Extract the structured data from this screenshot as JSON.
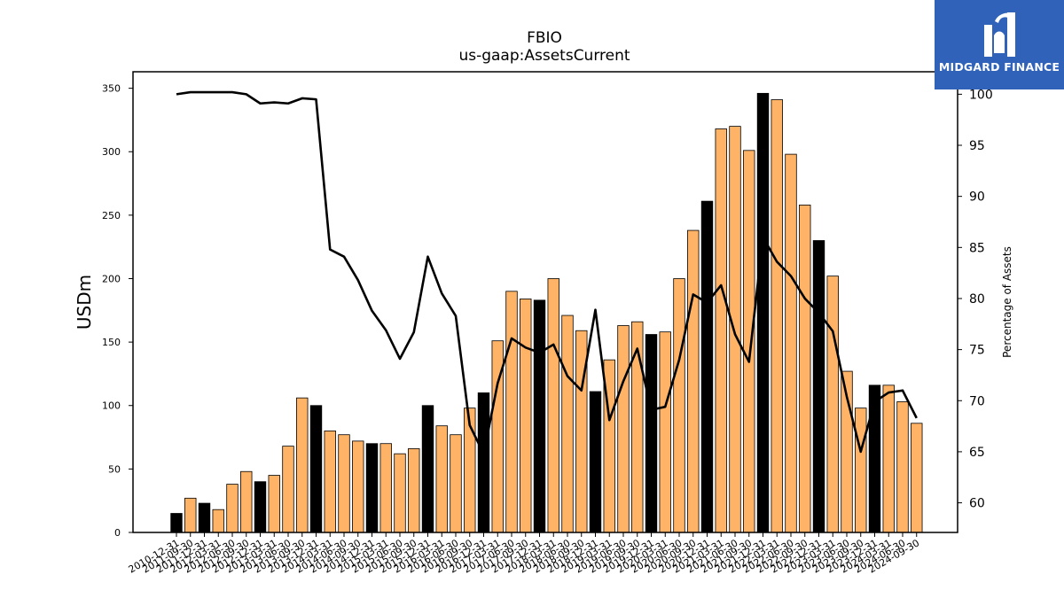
{
  "logo": {
    "text": "MIDGARD FINANCE",
    "background": "#2f62b8"
  },
  "chart_data": {
    "type": "bar",
    "title": "FBIO",
    "subtitle": "us-gaap:AssetsCurrent",
    "ylabel": "USDm",
    "y2label": "Percentage of Assets",
    "ylim": [
      0,
      363
    ],
    "y2lim": [
      57.1,
      102.2
    ],
    "yticks": [
      0,
      50,
      100,
      150,
      200,
      250,
      300,
      350
    ],
    "y2ticks": [
      60,
      65,
      70,
      75,
      80,
      85,
      90,
      95,
      100
    ],
    "grid": false,
    "colors": {
      "annual_bar": "#000000",
      "quarter_bar": "#ffb366",
      "line": "#000000"
    },
    "categories": [
      "2010-12-31",
      "2011-09-30",
      "2011-12-31",
      "2012-03-31",
      "2012-06-30",
      "2012-09-30",
      "2012-12-31",
      "2013-03-31",
      "2013-06-30",
      "2013-09-30",
      "2013-12-31",
      "2014-03-31",
      "2014-06-30",
      "2014-09-30",
      "2014-12-31",
      "2015-03-31",
      "2015-06-30",
      "2015-09-30",
      "2015-12-31",
      "2016-03-31",
      "2016-06-30",
      "2016-09-30",
      "2016-12-31",
      "2017-03-31",
      "2017-06-30",
      "2017-09-30",
      "2017-12-31",
      "2018-03-31",
      "2018-06-30",
      "2018-09-30",
      "2018-12-31",
      "2019-03-31",
      "2019-06-30",
      "2019-09-30",
      "2019-12-31",
      "2020-03-31",
      "2020-06-30",
      "2020-09-30",
      "2020-12-31",
      "2021-03-31",
      "2021-06-30",
      "2021-09-30",
      "2021-12-31",
      "2022-03-31",
      "2022-06-30",
      "2022-09-30",
      "2022-12-31",
      "2023-03-31",
      "2023-06-30",
      "2023-09-30",
      "2023-12-31",
      "2024-03-31",
      "2024-06-30",
      "2024-09-30"
    ],
    "series": [
      {
        "values": [
          15,
          27,
          23,
          18,
          38,
          48,
          40,
          45,
          68,
          106,
          100,
          80,
          77,
          72,
          70,
          70,
          62,
          66,
          100,
          84,
          77,
          98,
          110,
          151,
          190,
          184,
          183,
          200,
          171,
          159,
          111,
          136,
          163,
          166,
          156,
          158,
          200,
          238,
          261,
          318,
          320,
          301,
          346,
          341,
          298,
          258,
          230,
          202,
          127,
          98,
          116,
          116,
          103,
          86
        ]
      },
      {
        "values": [
          100.0,
          100.2,
          100.2,
          100.2,
          100.2,
          100.0,
          99.1,
          99.2,
          99.1,
          99.6,
          99.5,
          84.8,
          84.1,
          81.8,
          78.8,
          76.9,
          74.1,
          76.7,
          84.1,
          80.5,
          78.3,
          67.6,
          64.8,
          71.7,
          76.1,
          75.2,
          74.7,
          75.5,
          72.4,
          71.0,
          78.9,
          68.1,
          71.9,
          75.1,
          69.1,
          69.4,
          74.0,
          80.4,
          79.6,
          81.3,
          76.5,
          73.8,
          86.0,
          83.6,
          82.2,
          80.0,
          78.6,
          76.8,
          70.4,
          65.0,
          69.9,
          70.8,
          71.0,
          68.3
        ]
      }
    ]
  }
}
